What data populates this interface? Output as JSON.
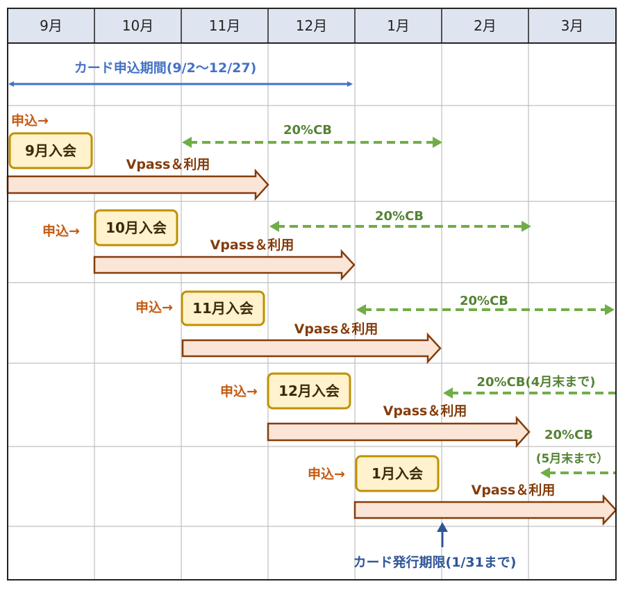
{
  "months": [
    "9月",
    "10月",
    "11月",
    "12月",
    "1月",
    "2月",
    "3月"
  ],
  "application_period": {
    "label": "カード申込期間(9/2〜12/27)",
    "color": "#4472c4"
  },
  "rows": [
    {
      "apply_label": "申込→",
      "badge_label": "9月入会",
      "usage_label": "Vpass＆利用",
      "cb_label": "20%CB",
      "cb_note": ""
    },
    {
      "apply_label": "申込→",
      "badge_label": "10月入会",
      "usage_label": "Vpass＆利用",
      "cb_label": "20%CB",
      "cb_note": ""
    },
    {
      "apply_label": "申込→",
      "badge_label": "11月入会",
      "usage_label": "Vpass＆利用",
      "cb_label": "20%CB",
      "cb_note": ""
    },
    {
      "apply_label": "申込→",
      "badge_label": "12月入会",
      "usage_label": "Vpass＆利用",
      "cb_label": "20%CB(4月末まで)",
      "cb_note": ""
    },
    {
      "apply_label": "申込→",
      "badge_label": "1月入会",
      "usage_label": "Vpass＆利用",
      "cb_label": "20%CB",
      "cb_note": "(5月末まで）"
    }
  ],
  "issue_deadline": {
    "label": "カード発行期限(1/31まで)",
    "color": "#2f5597"
  },
  "colors": {
    "header_bg": "#dfe5f0",
    "grid": "#bfbfbf",
    "border": "#222222",
    "apply_text": "#c55a11",
    "badge_fill": "#fff2cc",
    "badge_border": "#bf9000",
    "badge_text": "#3b2a0a",
    "usage_fill": "#fbe5d6",
    "usage_border": "#843c0c",
    "usage_text": "#843c0c",
    "cb": "#70ad47",
    "cb_text": "#548235"
  }
}
